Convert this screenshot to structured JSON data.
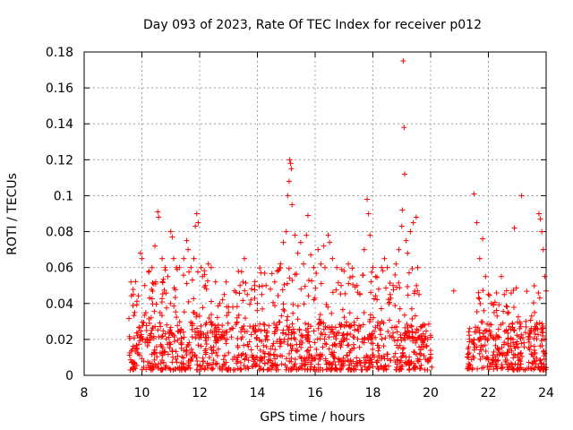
{
  "chart_data": {
    "type": "scatter",
    "title": "Day 093 of 2023, Rate Of TEC Index for receiver p012",
    "xlabel": "GPS time / hours",
    "ylabel": "ROTI / TECUs",
    "xlim": [
      8,
      24
    ],
    "ylim": [
      0,
      0.18
    ],
    "xticks": [
      "8",
      "10",
      "12",
      "14",
      "16",
      "18",
      "20",
      "22",
      "24"
    ],
    "yticks": [
      "0",
      "0.02",
      "0.04",
      "0.06",
      "0.08",
      "0.1",
      "0.12",
      "0.14",
      "0.16",
      "0.18"
    ],
    "grid": true,
    "marker": "+",
    "color": "#ff0000",
    "series": [
      {
        "points": [
          [
            9.62,
            0.052
          ],
          [
            9.7,
            0.045
          ],
          [
            9.75,
            0.035
          ],
          [
            9.85,
            0.022
          ],
          [
            9.95,
            0.068
          ],
          [
            10.0,
            0.065
          ],
          [
            10.1,
            0.05
          ],
          [
            10.25,
            0.058
          ],
          [
            10.35,
            0.06
          ],
          [
            10.45,
            0.072
          ],
          [
            10.55,
            0.091
          ],
          [
            10.58,
            0.088
          ],
          [
            10.7,
            0.065
          ],
          [
            10.8,
            0.06
          ],
          [
            10.9,
            0.055
          ],
          [
            11.0,
            0.08
          ],
          [
            11.05,
            0.077
          ],
          [
            11.1,
            0.065
          ],
          [
            11.2,
            0.06
          ],
          [
            11.3,
            0.06
          ],
          [
            11.45,
            0.065
          ],
          [
            11.55,
            0.075
          ],
          [
            11.6,
            0.07
          ],
          [
            11.7,
            0.06
          ],
          [
            11.8,
            0.065
          ],
          [
            11.85,
            0.083
          ],
          [
            11.9,
            0.09
          ],
          [
            11.95,
            0.085
          ],
          [
            12.05,
            0.06
          ],
          [
            12.1,
            0.055
          ],
          [
            12.2,
            0.05
          ],
          [
            12.3,
            0.062
          ],
          [
            12.4,
            0.06
          ],
          [
            12.55,
            0.052
          ],
          [
            12.7,
            0.04
          ],
          [
            12.85,
            0.045
          ],
          [
            13.0,
            0.038
          ],
          [
            13.15,
            0.038
          ],
          [
            13.3,
            0.032
          ],
          [
            13.4,
            0.05
          ],
          [
            13.5,
            0.052
          ],
          [
            13.55,
            0.065
          ],
          [
            13.65,
            0.045
          ],
          [
            13.8,
            0.048
          ],
          [
            13.9,
            0.05
          ],
          [
            14.0,
            0.04
          ],
          [
            14.15,
            0.045
          ],
          [
            14.3,
            0.05
          ],
          [
            14.45,
            0.048
          ],
          [
            14.6,
            0.052
          ],
          [
            14.7,
            0.058
          ],
          [
            14.8,
            0.062
          ],
          [
            14.9,
            0.074
          ],
          [
            15.0,
            0.08
          ],
          [
            15.05,
            0.1
          ],
          [
            15.1,
            0.108
          ],
          [
            15.12,
            0.12
          ],
          [
            15.15,
            0.118
          ],
          [
            15.18,
            0.115
          ],
          [
            15.2,
            0.095
          ],
          [
            15.3,
            0.078
          ],
          [
            15.4,
            0.068
          ],
          [
            15.5,
            0.074
          ],
          [
            15.6,
            0.062
          ],
          [
            15.7,
            0.078
          ],
          [
            15.75,
            0.089
          ],
          [
            15.85,
            0.067
          ],
          [
            15.95,
            0.06
          ],
          [
            16.1,
            0.07
          ],
          [
            16.2,
            0.062
          ],
          [
            16.3,
            0.072
          ],
          [
            16.45,
            0.078
          ],
          [
            16.5,
            0.074
          ],
          [
            16.6,
            0.065
          ],
          [
            16.75,
            0.06
          ],
          [
            16.9,
            0.05
          ],
          [
            17.0,
            0.058
          ],
          [
            17.15,
            0.062
          ],
          [
            17.3,
            0.055
          ],
          [
            17.45,
            0.05
          ],
          [
            17.55,
            0.045
          ],
          [
            17.7,
            0.07
          ],
          [
            17.8,
            0.098
          ],
          [
            17.85,
            0.09
          ],
          [
            17.9,
            0.078
          ],
          [
            18.0,
            0.06
          ],
          [
            18.1,
            0.055
          ],
          [
            18.2,
            0.048
          ],
          [
            18.3,
            0.06
          ],
          [
            18.4,
            0.065
          ],
          [
            18.5,
            0.06
          ],
          [
            18.6,
            0.045
          ],
          [
            18.7,
            0.05
          ],
          [
            18.8,
            0.062
          ],
          [
            18.9,
            0.07
          ],
          [
            19.0,
            0.083
          ],
          [
            19.02,
            0.092
          ],
          [
            19.05,
            0.175
          ],
          [
            19.08,
            0.138
          ],
          [
            19.1,
            0.112
          ],
          [
            19.15,
            0.075
          ],
          [
            19.2,
            0.068
          ],
          [
            19.3,
            0.08
          ],
          [
            19.4,
            0.085
          ],
          [
            19.5,
            0.088
          ],
          [
            19.55,
            0.06
          ],
          [
            19.6,
            0.045
          ],
          [
            19.7,
            0.02
          ],
          [
            19.8,
            0.028
          ],
          [
            19.9,
            0.02
          ],
          [
            20.0,
            0.01
          ],
          [
            20.8,
            0.047
          ],
          [
            21.3,
            0.005
          ],
          [
            21.5,
            0.101
          ],
          [
            21.6,
            0.085
          ],
          [
            21.7,
            0.065
          ],
          [
            21.8,
            0.076
          ],
          [
            21.9,
            0.055
          ],
          [
            22.0,
            0.045
          ],
          [
            22.1,
            0.04
          ],
          [
            22.2,
            0.035
          ],
          [
            22.3,
            0.033
          ],
          [
            22.45,
            0.055
          ],
          [
            22.55,
            0.045
          ],
          [
            22.7,
            0.035
          ],
          [
            22.9,
            0.082
          ],
          [
            23.15,
            0.1
          ],
          [
            23.3,
            0.03
          ],
          [
            23.5,
            0.033
          ],
          [
            23.6,
            0.035
          ],
          [
            23.75,
            0.09
          ],
          [
            23.8,
            0.087
          ],
          [
            23.85,
            0.08
          ],
          [
            23.9,
            0.07
          ],
          [
            23.95,
            0.055
          ],
          [
            24.0,
            0.047
          ]
        ],
        "bands": [
          {
            "from": 9.55,
            "to": 20.05,
            "ymin": 0.003,
            "ymax": 0.03,
            "count": 900
          },
          {
            "from": 9.55,
            "to": 19.7,
            "ymin": 0.02,
            "ymax": 0.06,
            "count": 320
          },
          {
            "from": 21.25,
            "to": 24.0,
            "ymin": 0.003,
            "ymax": 0.03,
            "count": 260
          },
          {
            "from": 21.6,
            "to": 23.9,
            "ymin": 0.02,
            "ymax": 0.05,
            "count": 60
          },
          {
            "from": 21.25,
            "to": 21.4,
            "ymin": 0.003,
            "ymax": 0.015,
            "count": 6
          }
        ]
      }
    ]
  }
}
